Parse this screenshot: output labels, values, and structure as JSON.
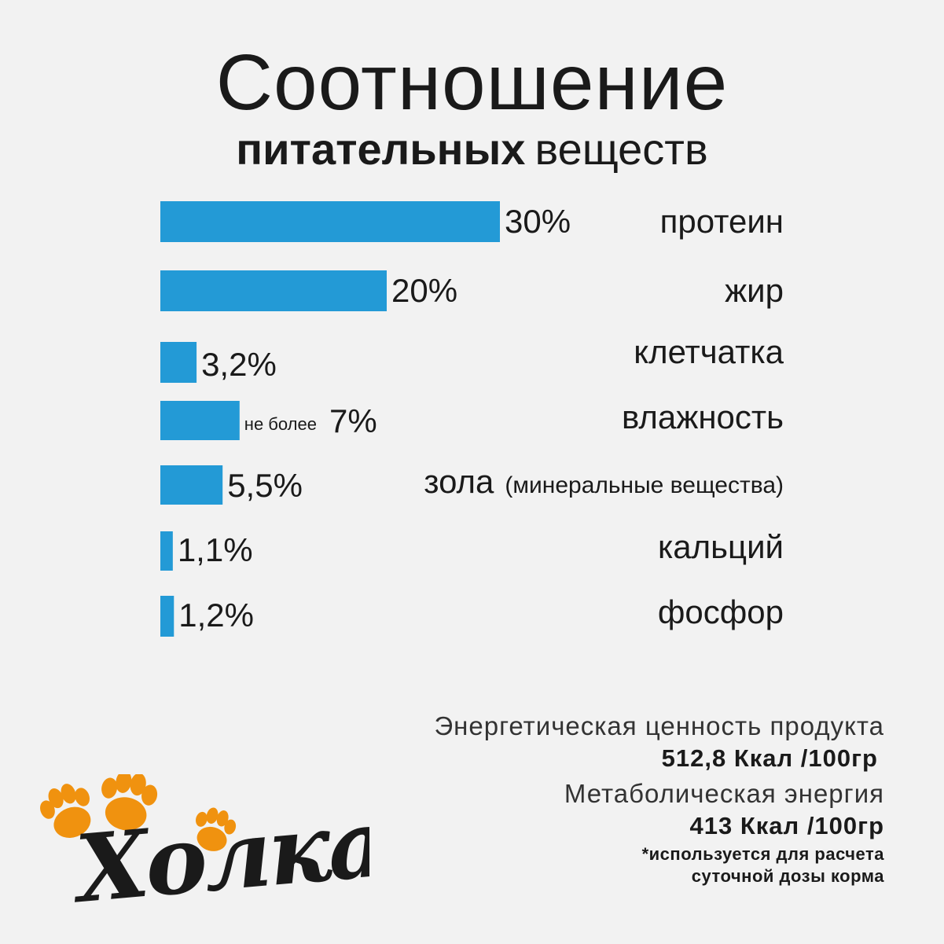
{
  "title": {
    "line1": "Соотношение",
    "line2_bold": "питательных",
    "line2_light": "веществ"
  },
  "chart_data": {
    "type": "bar",
    "orientation": "horizontal",
    "categories": [
      "протеин",
      "жир",
      "клетчатка",
      "влажность",
      "зола",
      "кальций",
      "фосфор"
    ],
    "category_notes": [
      "",
      "",
      "",
      "",
      "(минеральные вещества)",
      "",
      ""
    ],
    "values": [
      30,
      20,
      3.2,
      7,
      5.5,
      1.1,
      1.2
    ],
    "value_labels": [
      "30%",
      "20%",
      "3,2%",
      "7%",
      "5,5%",
      "1,1%",
      "1,2%"
    ],
    "value_prefixes": [
      "",
      "",
      "",
      "не более",
      "",
      "",
      ""
    ],
    "bar_color": "#239ad6",
    "grid": false
  },
  "energy": {
    "label1": "Энергетическая ценность продукта",
    "value1": "512,8 Ккал /100гр",
    "label2": "Метаболическая энергия",
    "value2": "413 Ккал /100гр",
    "footnote_line1": "*используется для расчета",
    "footnote_line2": "суточной дозы корма"
  },
  "logo": {
    "text": "Холка",
    "paw_color": "#f0920f",
    "text_color": "#1a1a1a"
  }
}
